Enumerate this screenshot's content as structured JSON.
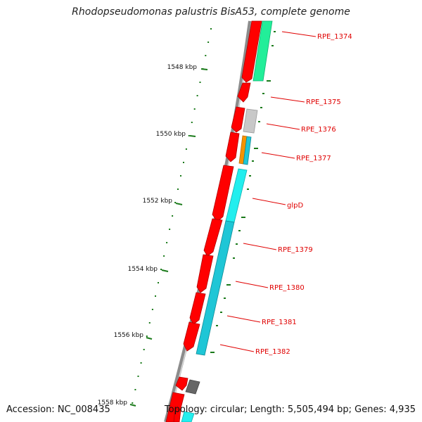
{
  "title": "Rhodopseudomonas palustris BisA53, complete genome",
  "footer": {
    "accession": "Accession: NC_008435",
    "topology": "Topology: circular; Length: 5,505,494 bp; Genes: 4,935"
  },
  "kbp_labels": [
    "1548 kbp",
    "1550 kbp",
    "1552 kbp",
    "1554 kbp",
    "1556 kbp",
    "1558 kbp"
  ],
  "gene_labels": [
    "RPE_1374",
    "RPE_1375",
    "RPE_1376",
    "RPE_1377",
    "glpD",
    "RPE_1379",
    "RPE_1380",
    "RPE_1381",
    "RPE_1382"
  ],
  "colors": {
    "cds": "#ff0000",
    "backbone": "#8c8c8c",
    "label": "#e00000",
    "tick": "#1a7a1a",
    "spring_green": "#22ee99",
    "cyan": "#22eeee",
    "teal": "#1fc6d6",
    "grey": "#c8c8c8",
    "dark_grey": "#666666",
    "orange": "#f59300"
  }
}
